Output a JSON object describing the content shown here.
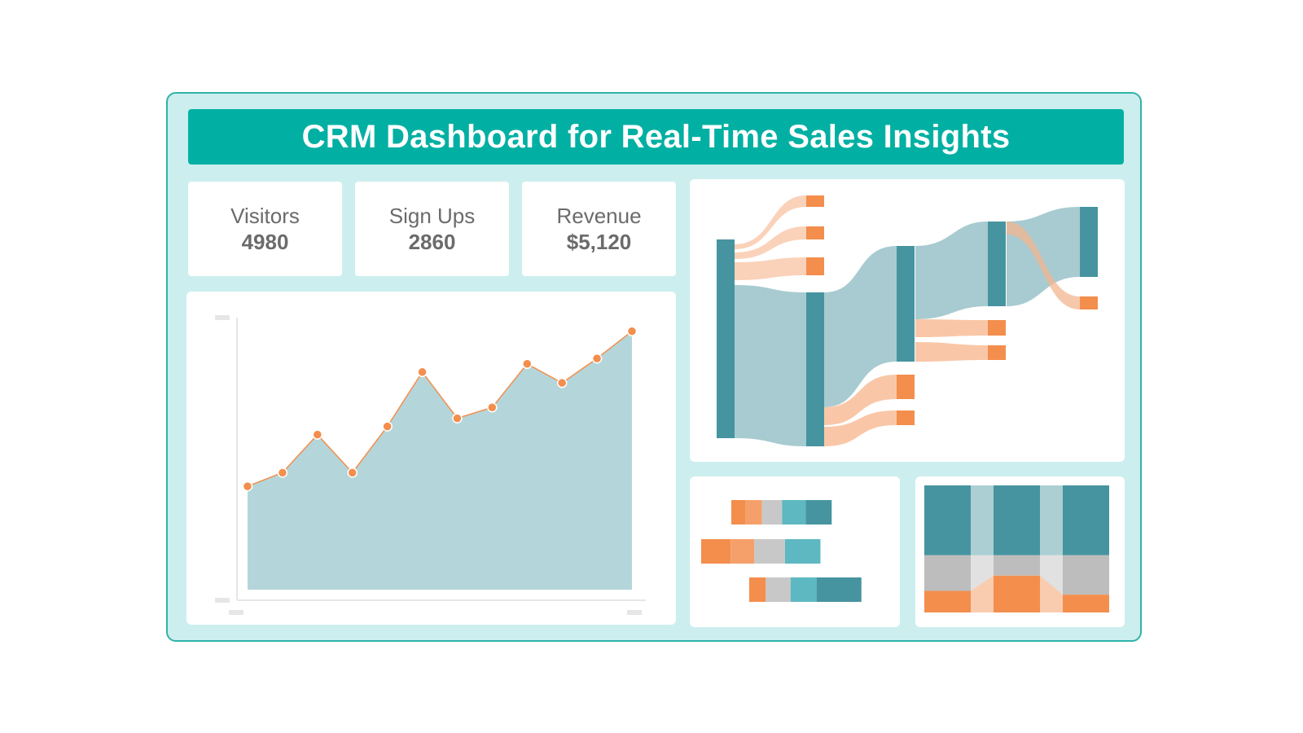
{
  "title": "CRM Dashboard for Real-Time Sales Insights",
  "colors": {
    "frame_bg": "#cdeeee",
    "frame_border": "#2fb3a8",
    "title_bg": "#01b0a3",
    "teal_dark": "#46949f",
    "teal_light": "#a7cbd1",
    "teal_mid": "#5db8c2",
    "orange": "#f38e4d",
    "orange_light": "#f9c7a8",
    "gray": "#c8c8c8",
    "area_fill": "#b4d6da"
  },
  "kpis": [
    {
      "label": "Visitors",
      "value": "4980"
    },
    {
      "label": "Sign Ups",
      "value": "2860"
    },
    {
      "label": "Revenue",
      "value": "$5,120"
    }
  ],
  "chart_data": [
    {
      "type": "area",
      "x": [
        1,
        2,
        3,
        4,
        5,
        6,
        7,
        8,
        9,
        10,
        11,
        12
      ],
      "series": [
        {
          "values": [
            38,
            43,
            57,
            43,
            60,
            80,
            63,
            67,
            83,
            76,
            85,
            95
          ]
        }
      ],
      "ylim": [
        0,
        100
      ],
      "grid": false
    },
    {
      "type": "sankey",
      "node_columns": 5,
      "palette": [
        "teal_dark",
        "orange"
      ]
    },
    {
      "type": "bar",
      "orientation": "horizontal",
      "stacked": true,
      "categories": [
        "1",
        "2",
        "3"
      ],
      "series": [
        {
          "color": "#f38e4d",
          "values": [
            12,
            25,
            14
          ]
        },
        {
          "color": "#f5a06a",
          "values": [
            14,
            20,
            0
          ]
        },
        {
          "color": "#c8c8c8",
          "values": [
            17,
            26,
            21
          ]
        },
        {
          "color": "#5db8c2",
          "values": [
            20,
            30,
            22
          ]
        },
        {
          "color": "#46949f",
          "values": [
            22,
            0,
            38
          ]
        }
      ]
    },
    {
      "type": "bar",
      "stacked": true,
      "percent": true,
      "categories": [
        "1",
        "2",
        "3"
      ],
      "series": [
        {
          "color": "#46949f",
          "values": [
            55,
            55,
            55
          ]
        },
        {
          "color": "#bdbdbd",
          "values": [
            28,
            16,
            31
          ]
        },
        {
          "color": "#f38e4d",
          "values": [
            17,
            29,
            14
          ]
        }
      ]
    }
  ]
}
